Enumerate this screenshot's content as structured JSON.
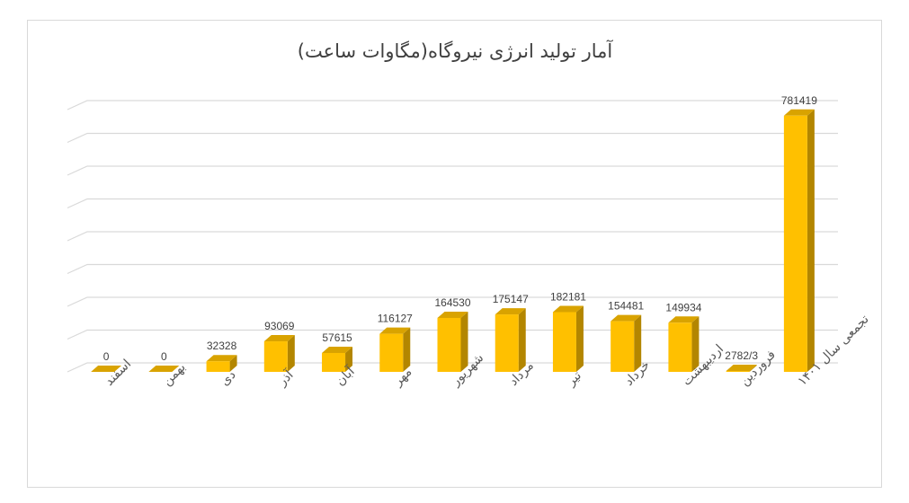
{
  "chart_data": {
    "type": "bar",
    "title": "آمار تولید انرژی نیروگاه(مگاوات ساعت)",
    "xlabel": "",
    "ylabel": "",
    "ylim": [
      0,
      800000
    ],
    "grid": true,
    "legend": "none",
    "colors": {
      "bar_front": "#FFC000",
      "bar_side": "#B38600",
      "bar_top": "#D9A300",
      "grid": "#d9d9d9",
      "text": "#404040"
    },
    "categories": [
      "اسفند",
      "بهمن",
      "دی",
      "آذر",
      "آبان",
      "مهر",
      "شهریور",
      "مرداد",
      "تیر",
      "خرداد",
      "اردیبهشت",
      "فروردین",
      "تجمعی سال ۱۴۰۱"
    ],
    "values": [
      0,
      0,
      32328,
      93069,
      57615,
      116127,
      164530,
      175147,
      182181,
      154481,
      149934,
      2782.3,
      781419
    ],
    "data_labels": [
      "0",
      "0",
      "32328",
      "93069",
      "57615",
      "116127",
      "164530",
      "175147",
      "182181",
      "154481",
      "149934",
      "2782/3",
      "781419"
    ]
  }
}
